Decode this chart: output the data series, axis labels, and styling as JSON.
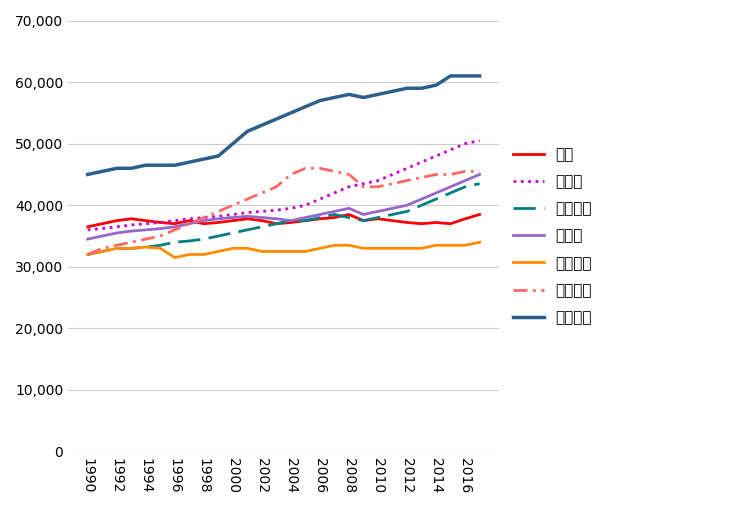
{
  "years": [
    1990,
    1991,
    1992,
    1993,
    1994,
    1995,
    1996,
    1997,
    1998,
    1999,
    2000,
    2001,
    2002,
    2003,
    2004,
    2005,
    2006,
    2007,
    2008,
    2009,
    2010,
    2011,
    2012,
    2013,
    2014,
    2015,
    2016,
    2017
  ],
  "japan": [
    36500,
    37000,
    37500,
    37800,
    37500,
    37200,
    37000,
    37500,
    37000,
    37200,
    37500,
    37800,
    37500,
    37000,
    37200,
    37500,
    37800,
    38000,
    38500,
    37500,
    37800,
    37500,
    37200,
    37000,
    37200,
    37000,
    37800,
    38500
  ],
  "canada": [
    36000,
    36200,
    36500,
    36800,
    37000,
    37200,
    37500,
    37800,
    38000,
    38200,
    38500,
    38800,
    39000,
    39200,
    39500,
    40000,
    41000,
    42000,
    43000,
    43500,
    44000,
    45000,
    46000,
    47000,
    48000,
    49000,
    50000,
    50500
  ],
  "france": [
    32000,
    32500,
    33000,
    33000,
    33200,
    33500,
    34000,
    34200,
    34500,
    35000,
    35500,
    36000,
    36500,
    37000,
    37500,
    37500,
    38000,
    38500,
    38000,
    37500,
    38000,
    38500,
    39000,
    40000,
    41000,
    42000,
    43000,
    43500
  ],
  "germany": [
    34500,
    35000,
    35500,
    35800,
    36000,
    36200,
    36500,
    37000,
    37500,
    37800,
    38000,
    38200,
    38000,
    37800,
    37500,
    38000,
    38500,
    39000,
    39500,
    38500,
    39000,
    39500,
    40000,
    41000,
    42000,
    43000,
    44000,
    45000
  ],
  "italy": [
    32000,
    32500,
    33000,
    33000,
    33200,
    33000,
    31500,
    32000,
    32000,
    32500,
    33000,
    33000,
    32500,
    32500,
    32500,
    32500,
    33000,
    33500,
    33500,
    33000,
    33000,
    33000,
    33000,
    33000,
    33500,
    33500,
    33500,
    34000
  ],
  "uk": [
    32000,
    33000,
    33500,
    34000,
    34500,
    35000,
    36000,
    37000,
    38000,
    39000,
    40000,
    41000,
    42000,
    43000,
    45000,
    46000,
    46000,
    45500,
    45000,
    43000,
    43000,
    43500,
    44000,
    44500,
    45000,
    45000,
    45500,
    45500
  ],
  "usa": [
    45000,
    45500,
    46000,
    46000,
    46500,
    46500,
    46500,
    47000,
    47500,
    48000,
    50000,
    52000,
    53000,
    54000,
    55000,
    56000,
    57000,
    57500,
    58000,
    57500,
    58000,
    58500,
    59000,
    59000,
    59500,
    61000,
    61000,
    61000
  ],
  "japan_color": "#FF0000",
  "canada_color": "#CC00CC",
  "france_color": "#008080",
  "germany_color": "#9966CC",
  "italy_color": "#FF8C00",
  "uk_color": "#FF6666",
  "usa_color": "#2E5F8A",
  "background_color": "#FFFFFF",
  "grid_color": "#CCCCCC",
  "ylim": [
    0,
    70000
  ],
  "yticks": [
    0,
    10000,
    20000,
    30000,
    40000,
    50000,
    60000,
    70000
  ]
}
